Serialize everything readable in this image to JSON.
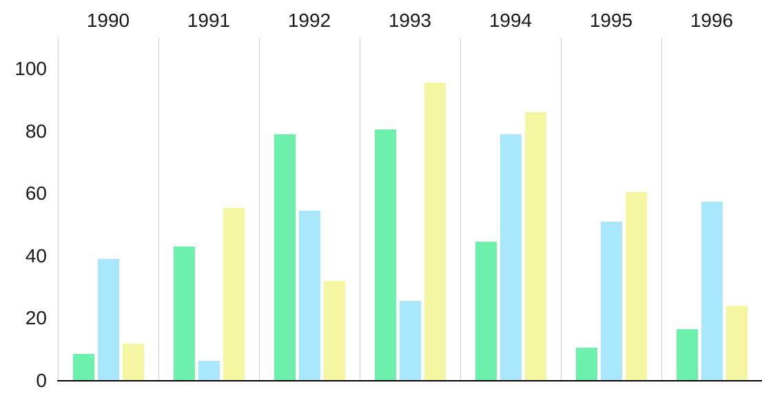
{
  "chart_data": {
    "type": "bar",
    "title": "",
    "xlabel": "",
    "ylabel": "",
    "categories": [
      "1990",
      "1991",
      "1992",
      "1993",
      "1994",
      "1995",
      "1996"
    ],
    "series": [
      {
        "name": "green",
        "color": "#6DF0AB",
        "values": [
          8.5,
          43,
          79,
          80.5,
          44.5,
          10.5,
          16.5
        ]
      },
      {
        "name": "blue",
        "color": "#A9E7FC",
        "values": [
          39,
          6.5,
          54.5,
          25.5,
          79,
          51,
          57.5
        ]
      },
      {
        "name": "yellow",
        "color": "#F4F6A1",
        "values": [
          12,
          55.5,
          32,
          95.5,
          86,
          60.5,
          24
        ]
      }
    ],
    "ylim": [
      0,
      100
    ],
    "yticks": [
      0,
      20,
      40,
      60,
      80,
      100
    ],
    "legend_position": "none",
    "grid": "vertical category separators only",
    "category_label_position": "top",
    "axis_text_color": "#1a1a1a",
    "gridline_color": "#cccccc",
    "baseline_color": "#000000",
    "background_color": "#ffffff"
  }
}
